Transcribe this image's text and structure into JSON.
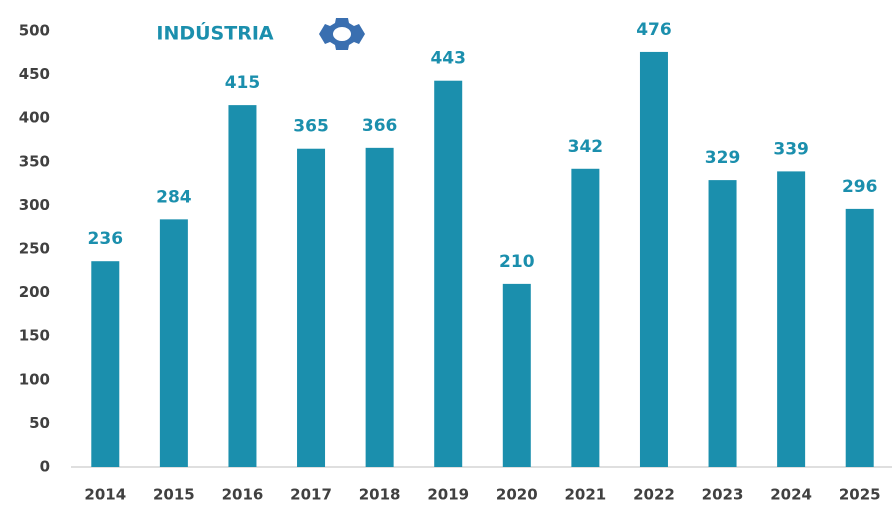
{
  "chart_data": {
    "type": "bar",
    "title": "INDÚSTRIA",
    "categories": [
      "2014",
      "2015",
      "2016",
      "2017",
      "2018",
      "2019",
      "2020",
      "2021",
      "2022",
      "2023",
      "2024",
      "2025"
    ],
    "values": [
      236,
      284,
      415,
      365,
      366,
      443,
      210,
      342,
      476,
      329,
      339,
      296
    ],
    "color": "#1b8fad",
    "ylim": [
      0,
      500
    ],
    "yticks": [
      0,
      50,
      100,
      150,
      200,
      250,
      300,
      350,
      400,
      450,
      500
    ],
    "grid": false
  }
}
